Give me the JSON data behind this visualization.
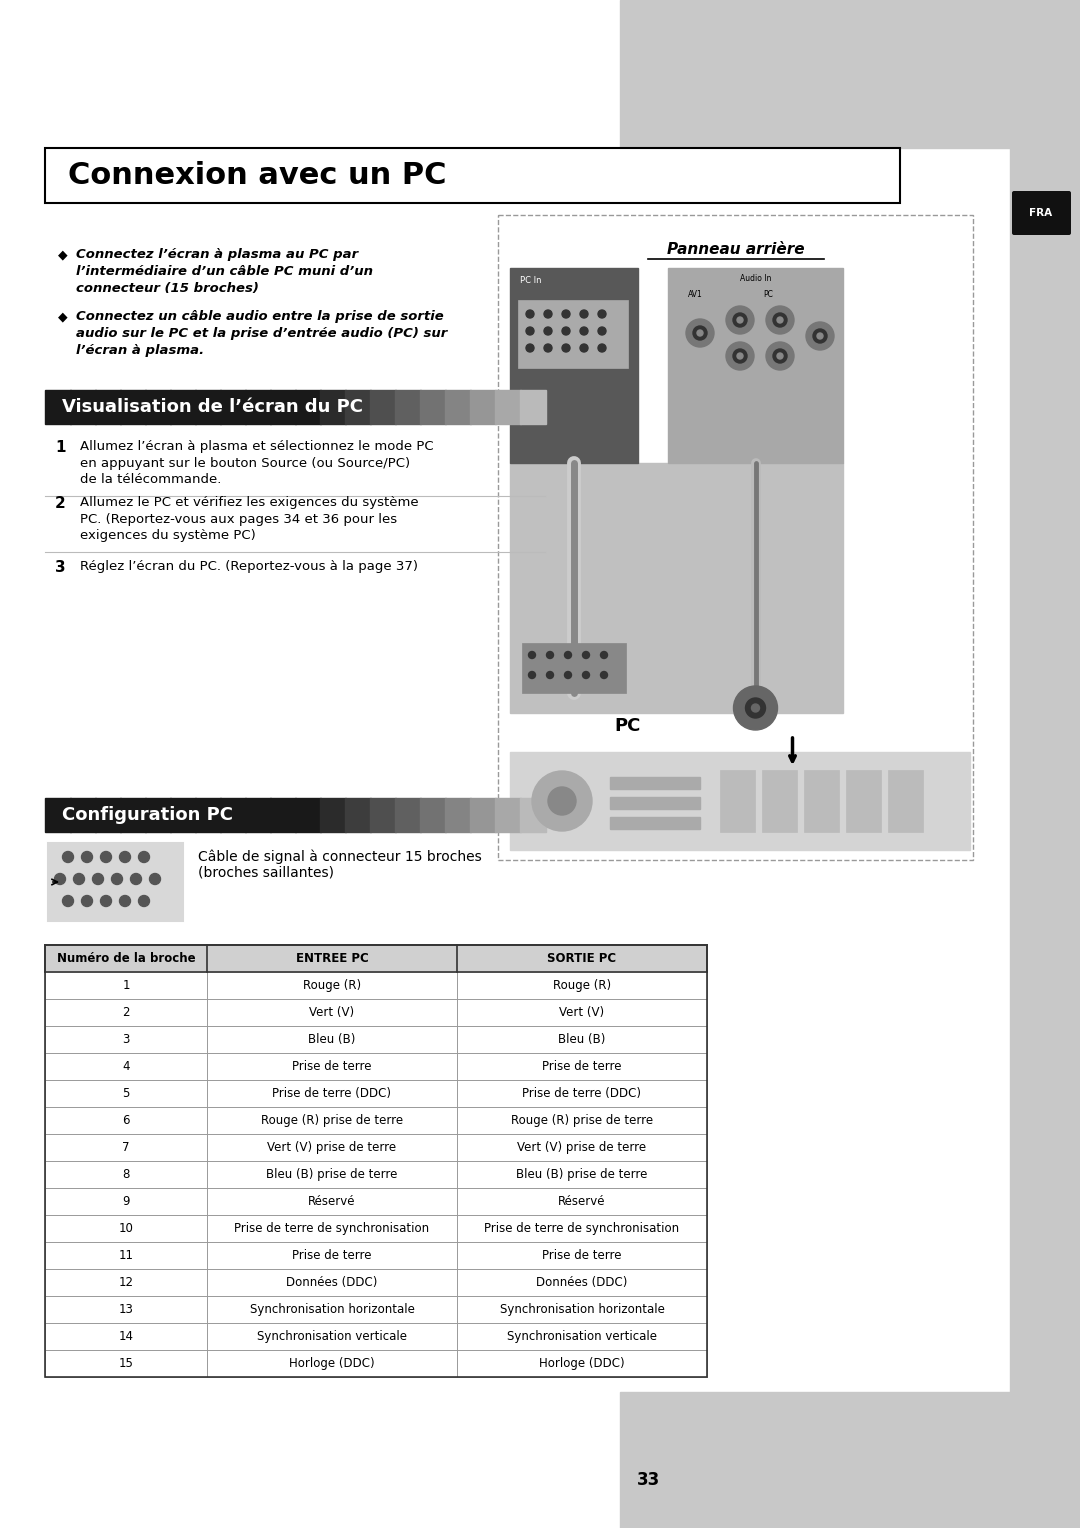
{
  "title": "Connexion avec un PC",
  "bg_color": "#ffffff",
  "gray_color": "#c8c8c8",
  "fra_label": "FRA",
  "bullet1_lines": [
    "Connectez l’écran à plasma au PC par",
    "l’intermédiaire d’un câble PC muni d’un",
    "connecteur (15 broches)"
  ],
  "bullet2_lines": [
    "Connectez un câble audio entre la prise de sortie",
    "audio sur le PC et la prise d’entrée audio (PC) sur",
    "l’écran à plasma."
  ],
  "section1_title": "Visualisation de l’écran du PC",
  "steps": [
    {
      "num": "1",
      "lines": [
        "Allumez l’écran à plasma et sélectionnez le mode PC",
        "en appuyant sur le bouton Source (ou Source/PC)",
        "de la télécommande."
      ]
    },
    {
      "num": "2",
      "lines": [
        "Allumez le PC et vérifiez les exigences du système",
        "PC. (Reportez-vous aux pages 34 et 36 pour les",
        "exigences du système PC)"
      ]
    },
    {
      "num": "3",
      "lines": [
        "Réglez l’écran du PC. (Reportez-vous à la page 37)"
      ]
    }
  ],
  "section2_title": "Configuration PC",
  "config_text_line1": "Câble de signal à connecteur 15 broches",
  "config_text_line2": "(broches saillantes)",
  "panneau_title": "Panneau arrière",
  "pc_label": "PC",
  "table_header": [
    "Numéro de la broche",
    "ENTREE PC",
    "SORTIE PC"
  ],
  "table_rows": [
    [
      "1",
      "Rouge (R)",
      "Rouge (R)"
    ],
    [
      "2",
      "Vert (V)",
      "Vert (V)"
    ],
    [
      "3",
      "Bleu (B)",
      "Bleu (B)"
    ],
    [
      "4",
      "Prise de terre",
      "Prise de terre"
    ],
    [
      "5",
      "Prise de terre (DDC)",
      "Prise de terre (DDC)"
    ],
    [
      "6",
      "Rouge (R) prise de terre",
      "Rouge (R) prise de terre"
    ],
    [
      "7",
      "Vert (V) prise de terre",
      "Vert (V) prise de terre"
    ],
    [
      "8",
      "Bleu (B) prise de terre",
      "Bleu (B) prise de terre"
    ],
    [
      "9",
      "Réservé",
      "Réservé"
    ],
    [
      "10",
      "Prise de terre de synchronisation",
      "Prise de terre de synchronisation"
    ],
    [
      "11",
      "Prise de terre",
      "Prise de terre"
    ],
    [
      "12",
      "Données (DDC)",
      "Données (DDC)"
    ],
    [
      "13",
      "Synchronisation horizontale",
      "Synchronisation horizontale"
    ],
    [
      "14",
      "Synchronisation verticale",
      "Synchronisation verticale"
    ],
    [
      "15",
      "Horloge (DDC)",
      "Horloge (DDC)"
    ]
  ],
  "page_number": "33"
}
